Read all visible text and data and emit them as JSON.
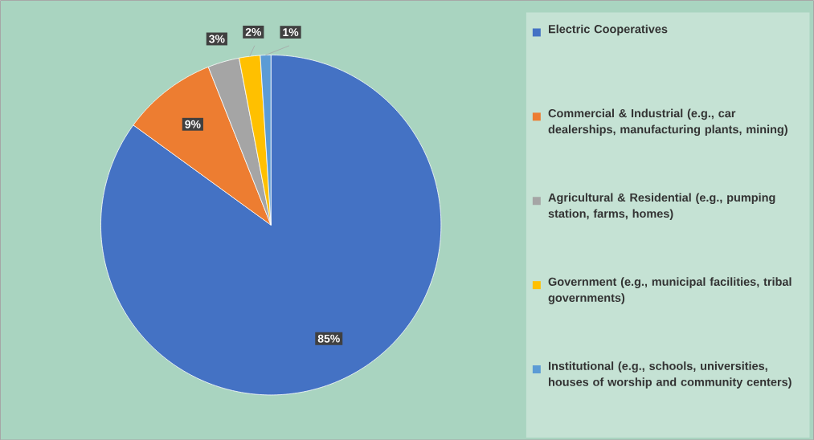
{
  "chart_data": {
    "type": "pie",
    "categories": [
      "Electric Cooperatives",
      "Commercial & Industrial (e.g., car dealerships, manufacturing plants, mining)",
      "Agricultural & Residential (e.g., pumping station, farms, homes)",
      "Government (e.g., municipal facilities, tribal governments)",
      "Institutional (e.g., schools, universities, houses of worship and community centers)"
    ],
    "values": [
      85,
      9,
      3,
      2,
      1
    ],
    "colors": [
      "#4472c4",
      "#ed7d31",
      "#a5a5a5",
      "#ffc000",
      "#5b9bd5"
    ],
    "value_labels": [
      "85%",
      "9%",
      "3%",
      "2%",
      "1%"
    ],
    "legend": "right"
  }
}
